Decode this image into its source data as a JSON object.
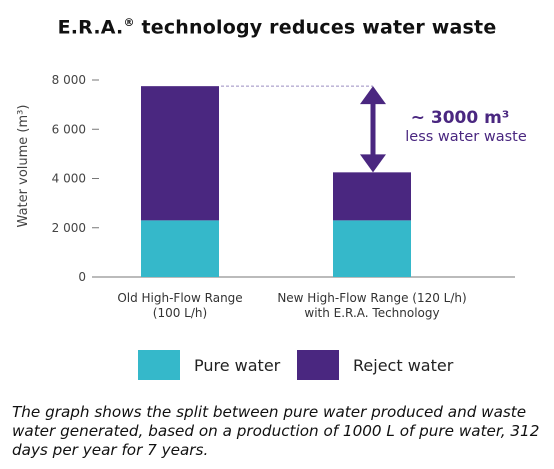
{
  "title": "E.R.A.",
  "title_mark": "®",
  "title_rest": " technology reduces water waste",
  "caption": "The graph shows the split between pure water produced and waste water generated, based on a production of 1000 L of pure water, 312 days per year for 7 years.",
  "annotation": {
    "value": "~ 3000 m³",
    "text": "less water waste"
  },
  "colors": {
    "pure": "#35b8ca",
    "reject": "#4a2780",
    "axis": "#777777",
    "text": "#333333"
  },
  "legend": [
    {
      "label": "Pure water",
      "color": "#35b8ca"
    },
    {
      "label": "Reject water",
      "color": "#4a2780"
    }
  ],
  "chart_data": {
    "type": "bar",
    "stacked": true,
    "categories": [
      [
        "Old High-Flow Range",
        "(100 L/h)"
      ],
      [
        "New High-Flow Range (120 L/h)",
        "with E.R.A. Technology"
      ]
    ],
    "series": [
      {
        "name": "Pure water",
        "values": [
          2300,
          2300
        ]
      },
      {
        "name": "Reject water",
        "values": [
          5450,
          1950
        ]
      }
    ],
    "totals": [
      7750,
      4250
    ],
    "ylabel": "Water volume (m³)",
    "yticks": [
      "0",
      "2 000",
      "4 000",
      "6 000",
      "8 000"
    ],
    "ytick_values": [
      0,
      2000,
      4000,
      6000,
      8000
    ],
    "ylim": [
      0,
      8000
    ],
    "legend_position": "bottom"
  }
}
